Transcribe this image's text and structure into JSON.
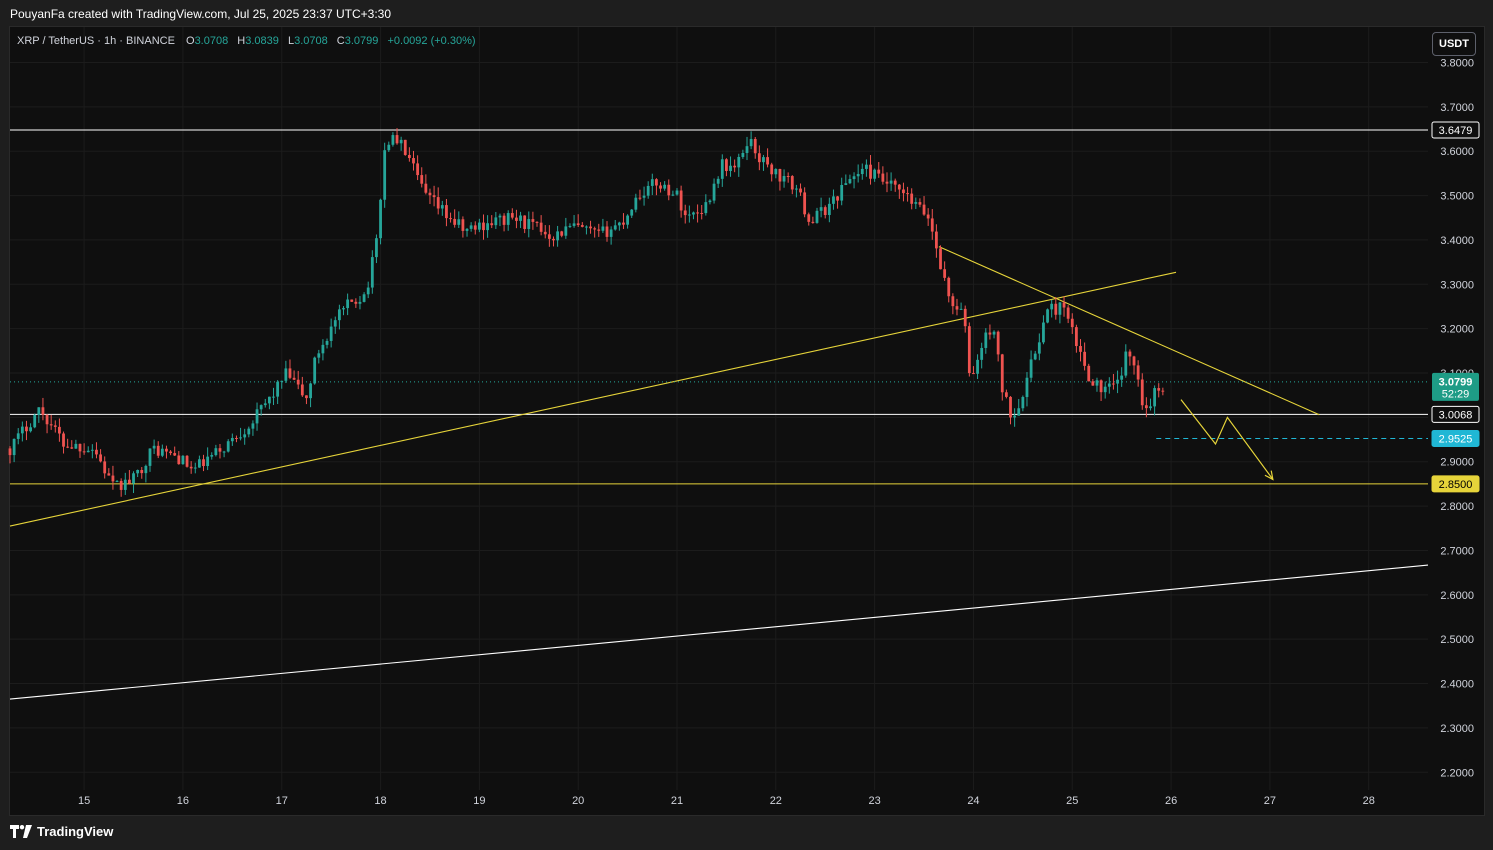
{
  "header": {
    "caption": "PouyanFa created with TradingView.com, Jul 25, 2025 23:37 UTC+3:30"
  },
  "legend": {
    "symbol": "XRP / TetherUS · 1h · BINANCE",
    "o_label": "O",
    "o_value": "3.0708",
    "h_label": "H",
    "h_value": "3.0839",
    "l_label": "L",
    "l_value": "3.0708",
    "c_label": "C",
    "c_value": "3.0799",
    "change": "+0.0092 (+0.30%)"
  },
  "currency_button": "USDT",
  "footer": {
    "brand": "TradingView"
  },
  "colors": {
    "up": "#26a69a",
    "down": "#ef5350",
    "annotation": "#e6d43a",
    "level_white": "#ffffff",
    "dashed": "#20b7d5",
    "last_price_bg": "#1e9c86"
  },
  "chart_data": {
    "type": "candlestick",
    "symbol": "XRP / TetherUS",
    "interval": "1h",
    "exchange": "BINANCE",
    "ylim": [
      2.16,
      3.88
    ],
    "xlim": [
      14.25,
      28.6
    ],
    "y_ticks": [
      "3.8000",
      "3.7000",
      "3.6000",
      "3.5000",
      "3.4000",
      "3.3000",
      "3.2000",
      "3.1000",
      "3.0000",
      "2.9000",
      "2.8000",
      "2.7000",
      "2.6000",
      "2.5000",
      "2.4000",
      "2.3000",
      "2.2000"
    ],
    "x_ticks": [
      {
        "label": "15",
        "x": 15
      },
      {
        "label": "16",
        "x": 16
      },
      {
        "label": "17",
        "x": 17
      },
      {
        "label": "18",
        "x": 18
      },
      {
        "label": "19",
        "x": 19
      },
      {
        "label": "20",
        "x": 20
      },
      {
        "label": "21",
        "x": 21
      },
      {
        "label": "22",
        "x": 22
      },
      {
        "label": "23",
        "x": 23
      },
      {
        "label": "24",
        "x": 24
      },
      {
        "label": "25",
        "x": 25
      },
      {
        "label": "26",
        "x": 26
      },
      {
        "label": "27",
        "x": 27
      },
      {
        "label": "28",
        "x": 28
      }
    ],
    "grid": true,
    "price_path": [
      [
        14.25,
        2.93
      ],
      [
        14.55,
        3.02
      ],
      [
        14.8,
        2.94
      ],
      [
        15.1,
        2.93
      ],
      [
        15.3,
        2.84
      ],
      [
        15.5,
        2.86
      ],
      [
        15.7,
        2.93
      ],
      [
        15.95,
        2.91
      ],
      [
        16.1,
        2.88
      ],
      [
        16.4,
        2.93
      ],
      [
        16.7,
        2.99
      ],
      [
        16.9,
        3.05
      ],
      [
        17.05,
        3.1
      ],
      [
        17.25,
        3.04
      ],
      [
        17.35,
        3.14
      ],
      [
        17.55,
        3.22
      ],
      [
        17.7,
        3.26
      ],
      [
        17.85,
        3.28
      ],
      [
        17.95,
        3.38
      ],
      [
        18.05,
        3.62
      ],
      [
        18.15,
        3.63
      ],
      [
        18.25,
        3.6
      ],
      [
        18.45,
        3.5
      ],
      [
        18.65,
        3.46
      ],
      [
        18.85,
        3.42
      ],
      [
        19.1,
        3.44
      ],
      [
        19.35,
        3.45
      ],
      [
        19.55,
        3.43
      ],
      [
        19.75,
        3.41
      ],
      [
        19.95,
        3.43
      ],
      [
        20.2,
        3.41
      ],
      [
        20.45,
        3.44
      ],
      [
        20.6,
        3.5
      ],
      [
        20.8,
        3.53
      ],
      [
        21.0,
        3.5
      ],
      [
        21.1,
        3.45
      ],
      [
        21.3,
        3.48
      ],
      [
        21.45,
        3.57
      ],
      [
        21.6,
        3.56
      ],
      [
        21.72,
        3.63
      ],
      [
        21.85,
        3.58
      ],
      [
        22.05,
        3.54
      ],
      [
        22.2,
        3.52
      ],
      [
        22.35,
        3.44
      ],
      [
        22.55,
        3.48
      ],
      [
        22.75,
        3.54
      ],
      [
        22.9,
        3.56
      ],
      [
        23.1,
        3.53
      ],
      [
        23.3,
        3.5
      ],
      [
        23.55,
        3.45
      ],
      [
        23.65,
        3.36
      ],
      [
        23.75,
        3.27
      ],
      [
        23.9,
        3.23
      ],
      [
        23.97,
        3.08
      ],
      [
        24.1,
        3.17
      ],
      [
        24.2,
        3.21
      ],
      [
        24.3,
        3.05
      ],
      [
        24.4,
        3.0
      ],
      [
        24.55,
        3.09
      ],
      [
        24.65,
        3.17
      ],
      [
        24.75,
        3.24
      ],
      [
        24.9,
        3.25
      ],
      [
        25.0,
        3.19
      ],
      [
        25.15,
        3.1
      ],
      [
        25.3,
        3.06
      ],
      [
        25.45,
        3.07
      ],
      [
        25.55,
        3.14
      ],
      [
        25.65,
        3.12
      ],
      [
        25.73,
        3.01
      ],
      [
        25.82,
        3.05
      ],
      [
        25.95,
        3.08
      ]
    ],
    "last_price": "3.0799",
    "countdown": "52:29",
    "price_labels": [
      {
        "value": 3.6479,
        "text": "3.6479",
        "style": "white"
      },
      {
        "value": 3.0068,
        "text": "3.0068",
        "style": "white"
      },
      {
        "value": 2.9525,
        "text": "2.9525",
        "style": "cyan"
      },
      {
        "value": 2.85,
        "text": "2.8500",
        "style": "yellow"
      }
    ],
    "drawings": [
      {
        "kind": "hline",
        "y": 3.6479,
        "color": "white"
      },
      {
        "kind": "hline",
        "y": 3.0068,
        "color": "white"
      },
      {
        "kind": "hline",
        "y": 2.85,
        "color": "yellow"
      },
      {
        "kind": "dashed",
        "y": 2.9525,
        "x1": 25.85,
        "x2": 28.6
      },
      {
        "kind": "trend",
        "points": [
          [
            14.25,
            2.755
          ],
          [
            26.05,
            3.327
          ]
        ],
        "color": "yellow"
      },
      {
        "kind": "trend",
        "points": [
          [
            23.65,
            3.385
          ],
          [
            27.5,
            3.006
          ]
        ],
        "color": "yellow"
      },
      {
        "kind": "trend",
        "points": [
          [
            14.25,
            2.365
          ],
          [
            28.6,
            2.667
          ]
        ],
        "color": "white"
      },
      {
        "kind": "path",
        "points": [
          [
            26.1,
            3.04
          ],
          [
            26.45,
            2.94
          ],
          [
            26.57,
            3.0
          ],
          [
            27.03,
            2.86
          ]
        ],
        "color": "yellow",
        "arrow": true
      }
    ]
  }
}
